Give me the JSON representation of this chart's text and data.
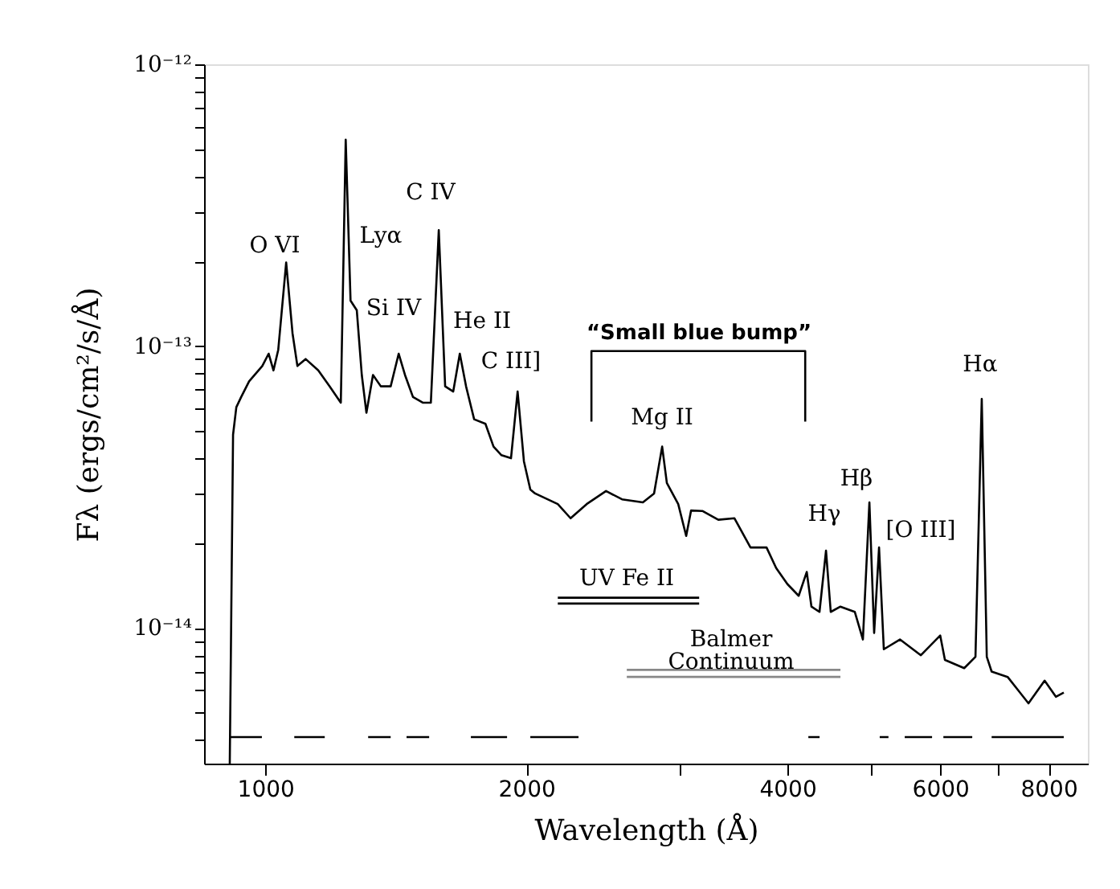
{
  "chart_data": {
    "type": "line",
    "xlabel": "Wavelength (Å)",
    "ylabel": "Fλ (ergs/cm²/s/Å)",
    "log": "xy",
    "grid": false,
    "marker": "none",
    "line_style": "solid",
    "xlim": [
      850,
      8880
    ],
    "ylim": [
      3.3e-15,
      1e-12
    ],
    "xticks": [
      1000,
      2000,
      {
        "value": 3000,
        "label": null
      },
      4000,
      {
        "value": 5000,
        "label": null
      },
      6000,
      {
        "value": 7000,
        "label": null
      },
      8000
    ],
    "yticks": [
      {
        "value": 4e-15,
        "label": null
      },
      {
        "value": 5e-15,
        "label": null
      },
      {
        "value": 6e-15,
        "label": null
      },
      {
        "value": 7e-15,
        "label": null
      },
      {
        "value": 8e-15,
        "label": null
      },
      {
        "value": 9e-15,
        "label": null
      },
      {
        "value": 1e-14,
        "label": "10⁻¹⁴"
      },
      {
        "value": 2e-14,
        "label": null
      },
      {
        "value": 3e-14,
        "label": null
      },
      {
        "value": 4e-14,
        "label": null
      },
      {
        "value": 5e-14,
        "label": null
      },
      {
        "value": 6e-14,
        "label": null
      },
      {
        "value": 7e-14,
        "label": null
      },
      {
        "value": 8e-14,
        "label": null
      },
      {
        "value": 9e-14,
        "label": null
      },
      {
        "value": 1e-13,
        "label": "10⁻¹³"
      },
      {
        "value": 2e-13,
        "label": null
      },
      {
        "value": 3e-13,
        "label": null
      },
      {
        "value": 4e-13,
        "label": null
      },
      {
        "value": 5e-13,
        "label": null
      },
      {
        "value": 6e-13,
        "label": null
      },
      {
        "value": 7e-13,
        "label": null
      },
      {
        "value": 8e-13,
        "label": null
      },
      {
        "value": 9e-13,
        "label": null
      },
      {
        "value": 1e-12,
        "label": "10⁻¹²"
      }
    ],
    "series": [
      {
        "color": "#000000",
        "x": [
          910,
          918,
          926,
          938,
          958,
          992,
          1009,
          1022,
          1035,
          1057,
          1075,
          1089,
          1113,
          1151,
          1186,
          1222,
          1238,
          1254,
          1275,
          1292,
          1308,
          1331,
          1359,
          1395,
          1425,
          1449,
          1480,
          1519,
          1552,
          1585,
          1612,
          1647,
          1676,
          1704,
          1741,
          1794,
          1833,
          1872,
          1920,
          1954,
          1987,
          2021,
          2047,
          2174,
          2249,
          2347,
          2471,
          2578,
          2725,
          2807,
          2868,
          2904,
          2993,
          3057,
          3097,
          3191,
          3329,
          3475,
          3626,
          3784,
          3882,
          4000,
          4121,
          4210,
          4263,
          4355,
          4431,
          4487,
          4604,
          4783,
          4887,
          4972,
          5035,
          5101,
          5166,
          5392,
          5700,
          6000,
          6076,
          6395,
          6589,
          6700,
          6790,
          6878,
          7176,
          7585,
          7917,
          8157,
          8330
        ],
        "values": [
          3.3e-15,
          4.85e-14,
          6.07e-14,
          6.6e-14,
          7.5e-14,
          8.5e-14,
          9.4e-14,
          8.2e-14,
          9.7e-14,
          1.98e-13,
          1.11e-13,
          8.5e-14,
          9e-14,
          8.2e-14,
          7.2e-14,
          6.3e-14,
          5.4e-13,
          1.45e-13,
          1.34e-13,
          7.9e-14,
          5.8e-14,
          7.9e-14,
          7.2e-14,
          7.2e-14,
          9.4e-14,
          7.9e-14,
          6.6e-14,
          6.3e-14,
          6.3e-14,
          2.58e-13,
          7.2e-14,
          6.9e-14,
          9.4e-14,
          7.2e-14,
          5.5e-14,
          5.3e-14,
          4.4e-14,
          4.1e-14,
          4e-14,
          6.9e-14,
          3.9e-14,
          3.1e-14,
          3e-14,
          2.75e-14,
          2.45e-14,
          2.75e-14,
          3.06e-14,
          2.86e-14,
          2.79e-14,
          3e-14,
          4.4e-14,
          3.27e-14,
          2.75e-14,
          2.12e-14,
          2.61e-14,
          2.6e-14,
          2.42e-14,
          2.45e-14,
          1.93e-14,
          1.93e-14,
          1.63e-14,
          1.43e-14,
          1.3e-14,
          1.58e-14,
          1.19e-14,
          1.14e-14,
          1.88e-14,
          1.14e-14,
          1.19e-14,
          1.14e-14,
          9.1e-15,
          2.79e-14,
          9.6e-15,
          1.93e-14,
          8.4e-15,
          9.1e-15,
          8e-15,
          9.4e-15,
          7.7e-15,
          7.2e-15,
          7.9e-15,
          6.5e-14,
          7.9e-15,
          7e-15,
          6.7e-15,
          5.4e-15,
          6.5e-15,
          5.7e-15,
          5.9e-15
        ]
      },
      {
        "color": "#000000",
        "x": [
          911,
          991,
          1030,
          1080,
          1171,
          1240,
          1314,
          1395,
          1420,
          1455,
          1545,
          1630,
          1726,
          1900,
          1960,
          2021,
          2297,
          3200,
          4228,
          4356,
          4750,
          5110,
          5230,
          5330,
          5461,
          5872,
          5960,
          6051,
          6533,
          6700,
          6878,
          8330
        ],
        "values": [
          4.1e-15,
          4.1e-15,
          null,
          4.1e-15,
          4.1e-15,
          null,
          4.1e-15,
          4.1e-15,
          null,
          4.1e-15,
          4.1e-15,
          null,
          4.1e-15,
          4.1e-15,
          null,
          4.1e-15,
          4.1e-15,
          null,
          4.1e-15,
          4.1e-15,
          null,
          4.1e-15,
          4.1e-15,
          null,
          4.1e-15,
          4.1e-15,
          null,
          4.1e-15,
          4.1e-15,
          null,
          4.1e-15,
          4.1e-15
        ]
      },
      {
        "color": "#000000",
        "x": [
          2377,
          2377,
          4193,
          4193
        ],
        "values": [
          5.4e-14,
          9.6e-14,
          9.6e-14,
          5.4e-14
        ]
      },
      {
        "color": "#000000",
        "x": [
          2174,
          3164
        ],
        "values": [
          1.28e-14,
          1.28e-14
        ]
      },
      {
        "color": "#000000",
        "x": [
          2174,
          3164
        ],
        "values": [
          1.22e-14,
          1.22e-14
        ]
      },
      {
        "color": "#888888",
        "x": [
          2611,
          4604
        ],
        "values": [
          7.1e-15,
          7.1e-15
        ]
      },
      {
        "color": "#888888",
        "x": [
          2611,
          4604
        ],
        "values": [
          6.7e-15,
          6.7e-15
        ]
      }
    ],
    "annotations": [
      "O VI",
      "Lyα",
      "Si IV",
      "C IV",
      "He II",
      "C III]",
      "Mg II",
      "Hγ",
      "Hβ",
      "[O III]",
      "Hα",
      "“Small blue bump”",
      "UV Fe II",
      "Balmer\nContinuum"
    ]
  }
}
